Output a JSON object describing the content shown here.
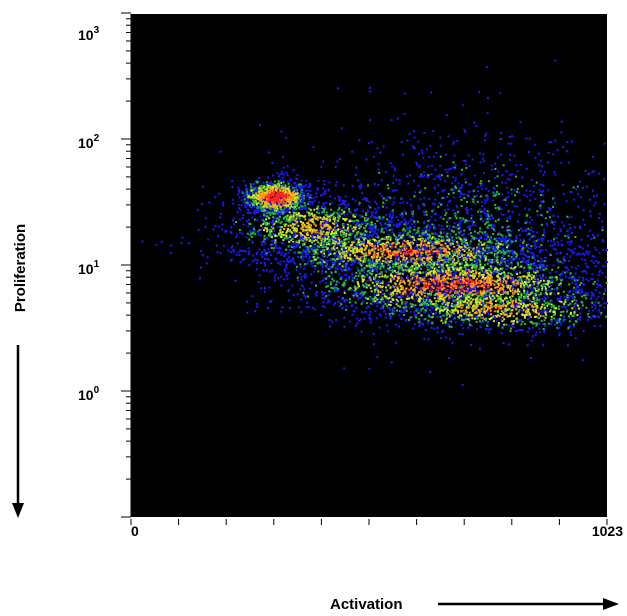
{
  "chart_data": {
    "type": "scatter",
    "subtype": "density-plot",
    "background_color": "#000000",
    "colormap": [
      "#1a1aff",
      "#1fbf3f",
      "#cfe82a",
      "#ff9a1a",
      "#ff2020"
    ],
    "xlabel": "Activation",
    "ylabel": "Proliferation",
    "x_scale": "linear",
    "y_scale": "log",
    "xlim": [
      0,
      1023
    ],
    "ylim": [
      0.05,
      1000
    ],
    "x_tick_labels": [
      "0",
      "1023"
    ],
    "y_tick_labels": [
      {
        "base": "10",
        "exp": "3",
        "value": 1000
      },
      {
        "base": "10",
        "exp": "2",
        "value": 100
      },
      {
        "base": "10",
        "exp": "1",
        "value": 10
      },
      {
        "base": "10",
        "exp": "0",
        "value": 1
      }
    ],
    "x_minor_tick_count": 10,
    "grid": false,
    "clusters": [
      {
        "x": 310,
        "y": 35,
        "sx": 35,
        "sy_log": 0.07,
        "n": 900,
        "peak": 1.0
      },
      {
        "x": 395,
        "y": 20,
        "sx": 90,
        "sy_log": 0.12,
        "n": 900,
        "peak": 0.65
      },
      {
        "x": 600,
        "y": 13,
        "sx": 150,
        "sy_log": 0.1,
        "n": 1500,
        "peak": 0.8
      },
      {
        "x": 690,
        "y": 7,
        "sx": 160,
        "sy_log": 0.12,
        "n": 2000,
        "peak": 0.85
      },
      {
        "x": 790,
        "y": 4.5,
        "sx": 130,
        "sy_log": 0.09,
        "n": 800,
        "peak": 0.7
      },
      {
        "x": 720,
        "y": 20,
        "sx": 190,
        "sy_log": 0.38,
        "n": 1600,
        "peak": 0.25
      }
    ]
  }
}
